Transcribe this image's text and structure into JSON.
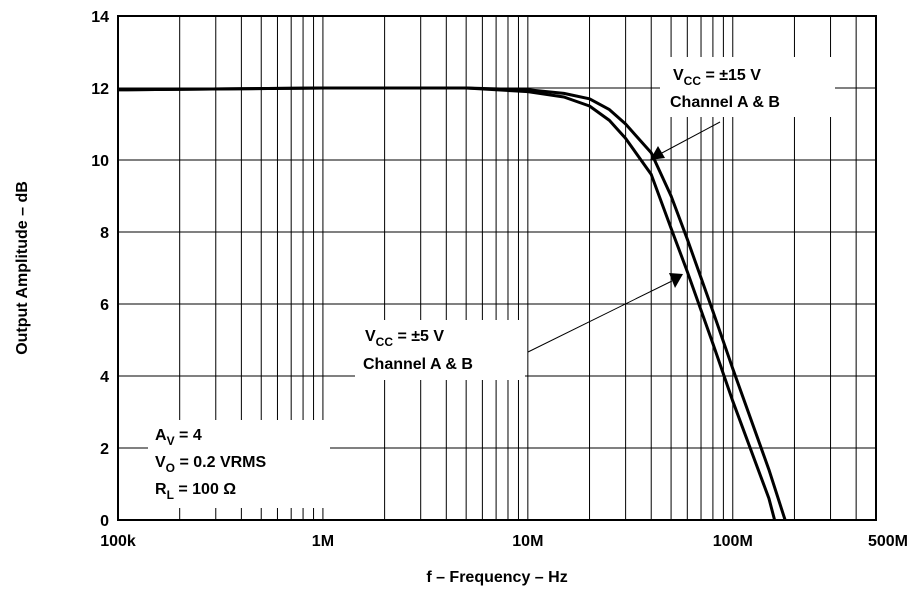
{
  "chart_data": {
    "type": "line",
    "xlabel": "f – Frequency – Hz",
    "ylabel": "Output Amplitude – dB",
    "x_scale": "log",
    "xlim": [
      100000,
      500000000
    ],
    "ylim": [
      0,
      14
    ],
    "x_ticks": [
      {
        "value": 100000,
        "label": "100k"
      },
      {
        "value": 1000000,
        "label": "1M"
      },
      {
        "value": 10000000,
        "label": "10M"
      },
      {
        "value": 100000000,
        "label": "100M"
      },
      {
        "value": 500000000,
        "label": "500M"
      }
    ],
    "y_ticks": [
      0,
      2,
      4,
      6,
      8,
      10,
      12,
      14
    ],
    "grid": true,
    "series": [
      {
        "name": "VCC = ±15 V Channel A & B",
        "x": [
          100000,
          1000000,
          3000000,
          5000000,
          10000000,
          15000000,
          20000000,
          25000000,
          30000000,
          40000000,
          50000000,
          60000000,
          80000000,
          100000000,
          150000000,
          180000000
        ],
        "y": [
          11.95,
          12.0,
          12.0,
          12.0,
          11.95,
          11.85,
          11.7,
          11.4,
          11.0,
          10.2,
          9.0,
          7.8,
          5.8,
          4.2,
          1.4,
          0.0
        ]
      },
      {
        "name": "VCC = ±5 V Channel A & B",
        "x": [
          100000,
          1000000,
          3000000,
          5000000,
          10000000,
          15000000,
          20000000,
          25000000,
          30000000,
          40000000,
          50000000,
          60000000,
          80000000,
          100000000,
          150000000,
          160000000
        ],
        "y": [
          11.95,
          12.0,
          12.0,
          12.0,
          11.9,
          11.75,
          11.5,
          11.1,
          10.6,
          9.6,
          8.1,
          6.9,
          4.9,
          3.3,
          0.6,
          0.0
        ]
      }
    ],
    "annotations": {
      "vcc15": {
        "line1_pre": "V",
        "line1_sub": "CC",
        "line1_post": " = ±15 V",
        "line2": "Channel A & B"
      },
      "vcc5": {
        "line1_pre": "V",
        "line1_sub": "CC",
        "line1_post": " = ±5 V",
        "line2": "Channel A & B"
      },
      "conditions": {
        "av_pre": "A",
        "av_sub": "V",
        "av_post": " = 4",
        "vo_pre": "V",
        "vo_sub": "O",
        "vo_post": " = 0.2 VRMS",
        "rl_pre": "R",
        "rl_sub": "L",
        "rl_post": " = 100 Ω"
      }
    }
  }
}
